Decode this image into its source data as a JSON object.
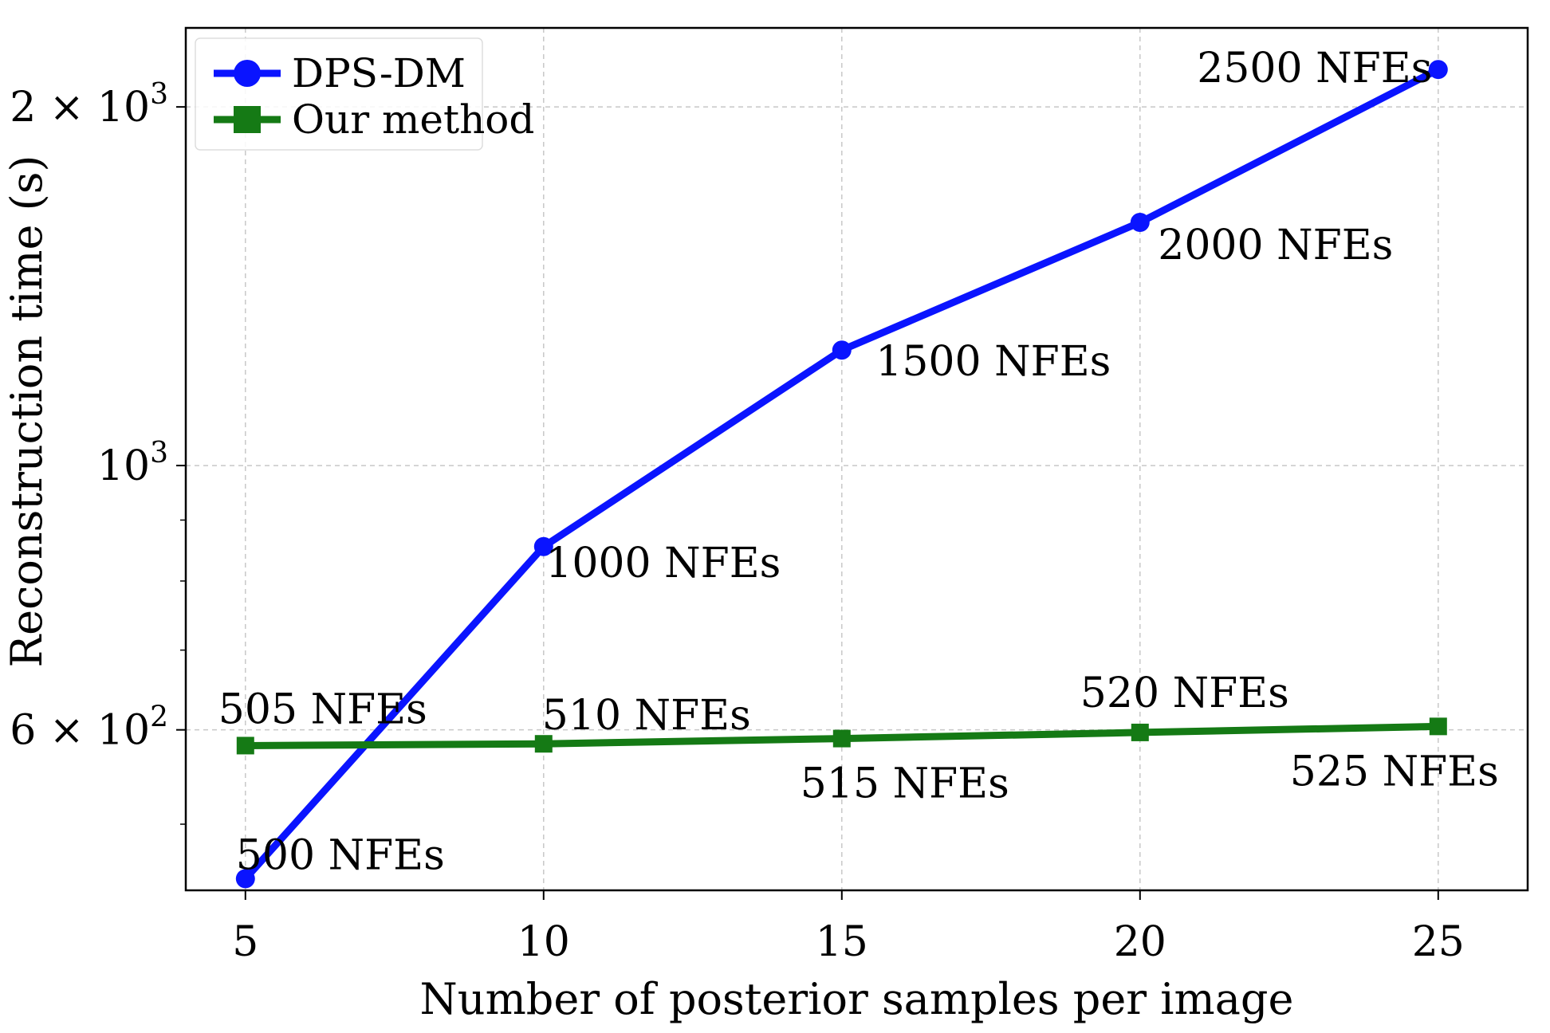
{
  "chart_data": {
    "type": "line",
    "title": "",
    "xlabel": "Number of posterior samples per image",
    "ylabel": "Reconstruction time (s)",
    "yscale": "log",
    "xlim": [
      4,
      26.5
    ],
    "ylim": [
      440,
      2330
    ],
    "x_ticks": [
      5,
      10,
      15,
      20,
      25
    ],
    "y_ticks": [
      {
        "value": 2000,
        "mantissa": "2 ×",
        "base": "10",
        "exp": "3"
      },
      {
        "value": 1000,
        "mantissa": "",
        "base": "10",
        "exp": "3"
      },
      {
        "value": 600,
        "mantissa": "6 ×",
        "base": "10",
        "exp": "2"
      }
    ],
    "y_minor_ticks": [
      500,
      700,
      800,
      900
    ],
    "grid": true,
    "legend_position": "top-left",
    "series": [
      {
        "name": "DPS-DM",
        "color": "#0a14ff",
        "marker": "circle",
        "x": [
          5,
          10,
          15,
          20,
          25
        ],
        "values": [
          450,
          855,
          1250,
          1600,
          2150
        ],
        "point_labels": [
          "500 NFEs",
          "1000 NFEs",
          "1500 NFEs",
          "2000 NFEs",
          "2500 NFEs"
        ]
      },
      {
        "name": "Our method",
        "color": "#157a15",
        "marker": "square",
        "x": [
          5,
          10,
          15,
          20,
          25
        ],
        "values": [
          582,
          584,
          590,
          597,
          604
        ],
        "point_labels": [
          "505 NFEs",
          "510 NFEs",
          "515 NFEs",
          "520 NFEs",
          "525 NFEs"
        ]
      }
    ]
  }
}
